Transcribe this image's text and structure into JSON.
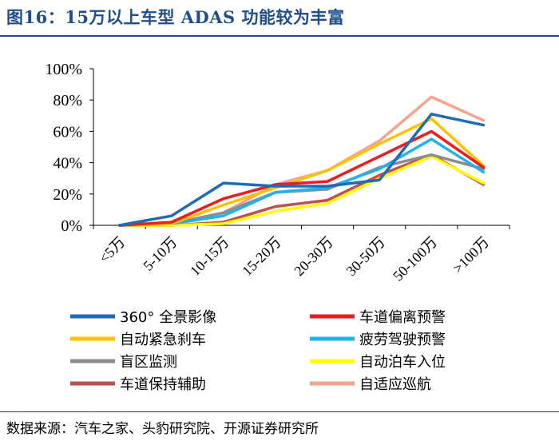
{
  "title": "图16：15万以上车型 ADAS 功能较为丰富",
  "source": "数据来源：汽车之家、头豹研究院、开源证券研究所",
  "chart_data": {
    "type": "line",
    "title": "图16：15万以上车型 ADAS 功能较为丰富",
    "xlabel": "",
    "ylabel": "",
    "ylim": [
      0,
      100
    ],
    "yticks": [
      "0%",
      "20%",
      "40%",
      "60%",
      "80%",
      "100%"
    ],
    "categories": [
      "<5万",
      "5-10万",
      "10-15万",
      "15-20万",
      "20-30万",
      "30-50万",
      "50-100万",
      ">100万"
    ],
    "legend_position": "bottom",
    "series": [
      {
        "name": "360° 全景影像",
        "color": "#1f6bb5",
        "values": [
          0,
          6,
          27,
          25,
          25,
          29,
          71,
          64
        ]
      },
      {
        "name": "车道偏离预警",
        "color": "#ee1c1c",
        "values": [
          0,
          2,
          17,
          26,
          28,
          44,
          60,
          37
        ]
      },
      {
        "name": "自动紧急刹车",
        "color": "#ffc000",
        "values": [
          0,
          1,
          13,
          24,
          35,
          52,
          68,
          38
        ]
      },
      {
        "name": "疲劳驾驶预警",
        "color": "#1fb2ef",
        "values": [
          0,
          1,
          6,
          21,
          24,
          36,
          55,
          34
        ]
      },
      {
        "name": "盲区监测",
        "color": "#8c8c8c",
        "values": [
          0,
          1,
          8,
          21,
          23,
          37,
          45,
          36
        ]
      },
      {
        "name": "自动泊车入位",
        "color": "#ffff00",
        "values": [
          0,
          0,
          1,
          9,
          14,
          30,
          44,
          27
        ]
      },
      {
        "name": "车道保持辅助",
        "color": "#c0504d",
        "values": [
          0,
          0,
          2,
          12,
          16,
          32,
          45,
          26
        ]
      },
      {
        "name": "自适应巡航",
        "color": "#f4a58a",
        "values": [
          0,
          1,
          8,
          26,
          35,
          54,
          82,
          67
        ]
      }
    ]
  }
}
